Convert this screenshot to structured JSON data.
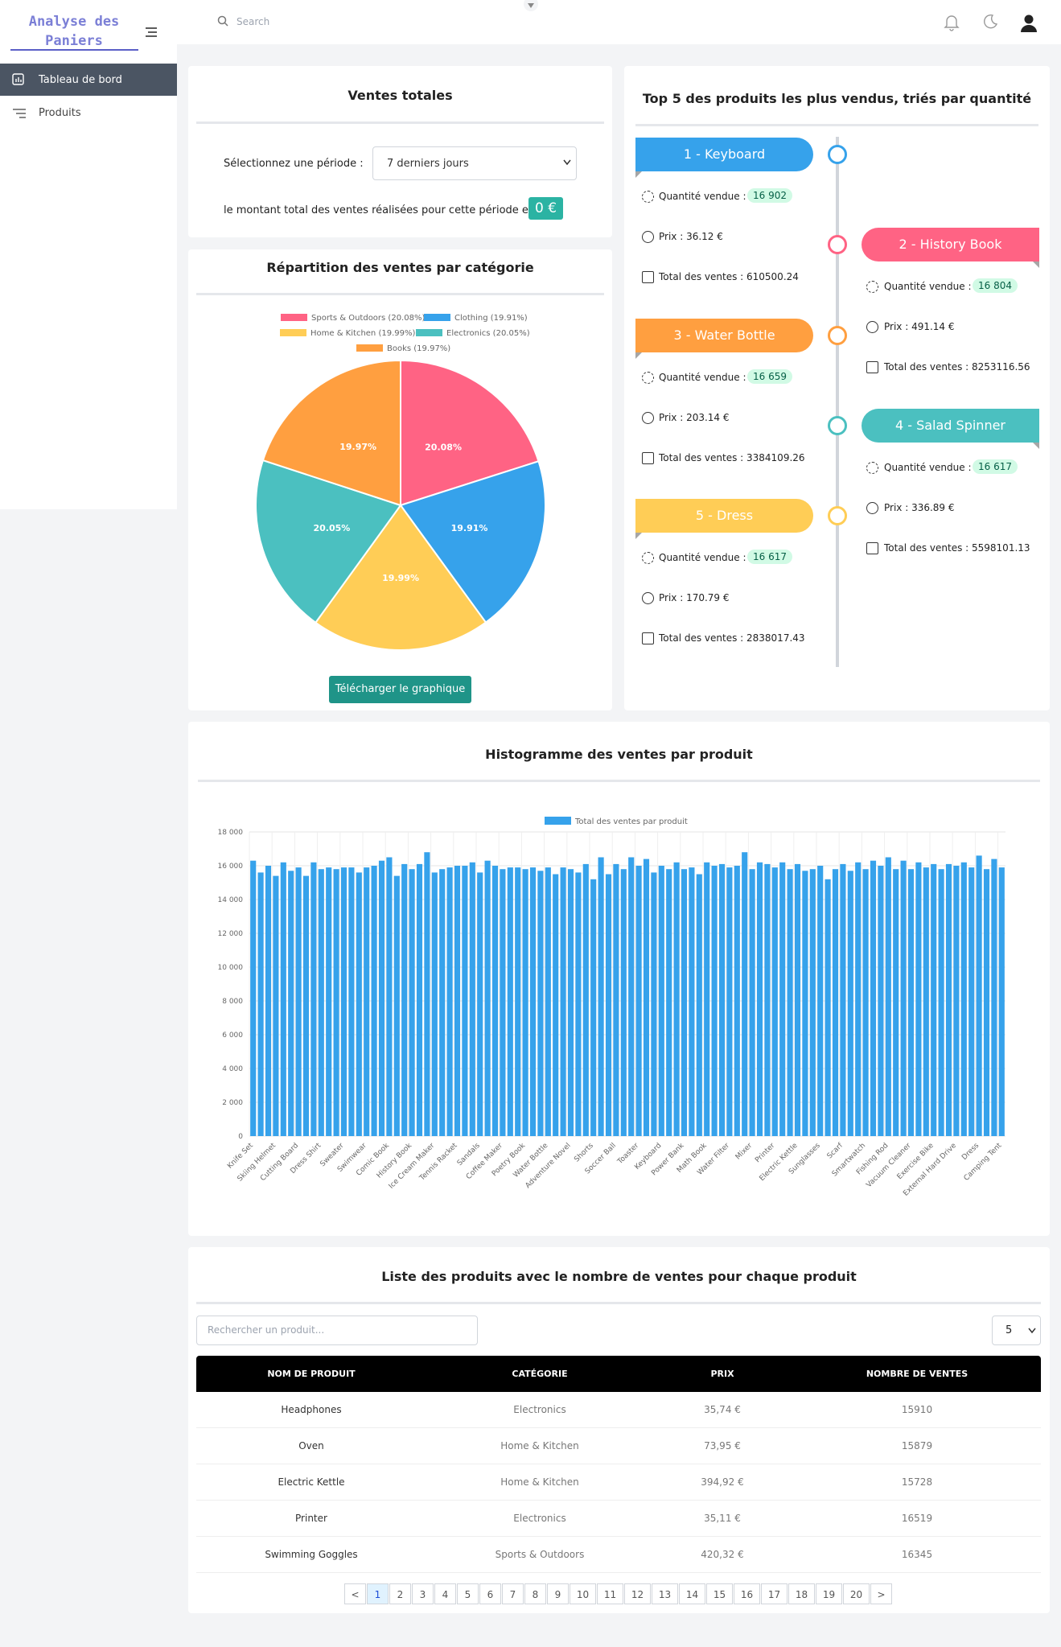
{
  "sidebar": {
    "logo_line1": "Analyse des",
    "logo_line2": "Paniers",
    "menu": [
      "Tableau de bord",
      "Produits"
    ]
  },
  "header": {
    "search_placeholder": "Search"
  },
  "sales_total": {
    "title": "Ventes totales",
    "period_label": "Sélectionnez une période :",
    "period_value": "7 derniers jours",
    "amount_text": "le montant total des ventes réalisées pour cette période est :",
    "amount": "0 €"
  },
  "pie_chart": {
    "type": "pie",
    "title": "Répartition des ventes par catégorie",
    "categories": [
      "Sports & Outdoors (20.08%)",
      "Clothing (19.91%)",
      "Home & Kitchen (19.99%)",
      "Electronics (20.05%)",
      "Books (19.97%)"
    ],
    "values": [
      20.08,
      19.91,
      19.99,
      20.05,
      19.97
    ],
    "value_labels": [
      "20.08%",
      "19.91%",
      "19.99%",
      "20.05%",
      "19.97%"
    ],
    "colors": [
      "#ff6384",
      "#36a2eb",
      "#ffcd56",
      "#4bc0c0",
      "#ff9f40"
    ],
    "legend": "top",
    "button": "Télécharger le graphique"
  },
  "top5": {
    "title": "Top 5 des produits les plus vendus, triés par quantité",
    "items": [
      {
        "rank_label": "1 - Keyboard",
        "quantity_label": "Quantité vendue :",
        "quantity": "16 902",
        "price": "Prix : 36.12 €",
        "total": "Total des ventes : 610500.24",
        "color": "#36a2eb",
        "side": "left"
      },
      {
        "rank_label": "2 - History Book",
        "quantity_label": "Quantité vendue :",
        "quantity": "16 804",
        "price": "Prix : 491.14 €",
        "total": "Total des ventes : 8253116.56",
        "color": "#ff6384",
        "side": "right"
      },
      {
        "rank_label": "3 - Water Bottle",
        "quantity_label": "Quantité vendue :",
        "quantity": "16 659",
        "price": "Prix : 203.14 €",
        "total": "Total des ventes : 3384109.26",
        "color": "#ff9f40",
        "side": "left"
      },
      {
        "rank_label": "4 - Salad Spinner",
        "quantity_label": "Quantité vendue :",
        "quantity": "16 617",
        "price": "Prix : 336.89 €",
        "total": "Total des ventes : 5598101.13",
        "color": "#4bc0c0",
        "side": "right"
      },
      {
        "rank_label": "5 - Dress",
        "quantity_label": "Quantité vendue :",
        "quantity": "16 617",
        "price": "Prix : 170.79 €",
        "total": "Total des ventes : 2838017.43",
        "color": "#ffcd56",
        "side": "left"
      }
    ]
  },
  "histogram": {
    "type": "bar",
    "title": "Histogramme des ventes par produit",
    "categories": [
      "Knife Set",
      null,
      null,
      "Skiing Helmet",
      null,
      null,
      "Cutting Board",
      null,
      null,
      "Dress Shirt",
      null,
      null,
      "Sweater",
      null,
      null,
      "Swimwear",
      null,
      null,
      "Comic Book",
      null,
      null,
      "History Book",
      null,
      null,
      "Ice Cream Maker",
      null,
      null,
      "Tennis Racket",
      null,
      null,
      "Sandals",
      null,
      null,
      "Coffee Maker",
      null,
      null,
      "Poetry Book",
      null,
      null,
      "Water Bottle",
      null,
      null,
      "Adventure Novel",
      null,
      null,
      "Shorts",
      null,
      null,
      "Soccer Ball",
      null,
      null,
      "Toaster",
      null,
      null,
      "Keyboard",
      null,
      null,
      "Power Bank",
      null,
      null,
      "Math Book",
      null,
      null,
      "Water Filter",
      null,
      null,
      "Mixer",
      null,
      null,
      "Printer",
      null,
      null,
      "Electric Kettle",
      null,
      null,
      "Sunglasses",
      null,
      null,
      "Scarf",
      null,
      null,
      "Smartwatch",
      null,
      null,
      "Fishing Rod",
      null,
      null,
      "Vacuum Cleaner",
      null,
      null,
      "Exercise Bike",
      null,
      null,
      "External Hard Drive",
      null,
      null,
      "Dress",
      null,
      null,
      "Camping Tent"
    ],
    "series": [
      {
        "name": "Total des ventes par produit",
        "color": "#36a2eb",
        "values": [
          16300,
          15600,
          16000,
          15400,
          16200,
          15700,
          15900,
          15400,
          16200,
          15800,
          15900,
          15800,
          15900,
          15900,
          15600,
          15900,
          16000,
          16300,
          16500,
          15400,
          16100,
          15800,
          16100,
          16800,
          15600,
          15800,
          15900,
          16000,
          16000,
          16200,
          15600,
          16300,
          16000,
          15800,
          15900,
          15900,
          15800,
          15900,
          15700,
          15900,
          15500,
          15900,
          15800,
          15600,
          16100,
          15200,
          16500,
          15500,
          16100,
          15800,
          16500,
          16000,
          16400,
          15600,
          16000,
          15800,
          16200,
          15800,
          15900,
          15500,
          16200,
          16000,
          16100,
          15900,
          16000,
          16800,
          15800,
          16200,
          16100,
          15900,
          16200,
          15800,
          16100,
          15700,
          15800,
          16000,
          15200,
          15800,
          16100,
          15700,
          16200,
          15800,
          16300,
          16000,
          16500,
          15800,
          16300,
          15800,
          16200,
          15900,
          16100,
          15800,
          16100,
          16000,
          16200,
          15900,
          16600,
          15800,
          16400,
          15900
        ]
      }
    ],
    "ylim": [
      0,
      18000
    ],
    "yticks": [
      0,
      {
        "value": 2000,
        "label": "2 000"
      },
      {
        "value": 4000,
        "label": "4 000"
      },
      {
        "value": 6000,
        "label": "6 000"
      },
      {
        "value": 8000,
        "label": "8 000"
      },
      {
        "value": 10000,
        "label": "10 000"
      },
      {
        "value": 12000,
        "label": "12 000"
      },
      {
        "value": 14000,
        "label": "14 000"
      },
      {
        "value": 16000,
        "label": "16 000"
      },
      {
        "value": 18000,
        "label": "18 000"
      }
    ],
    "grid": true,
    "legend": "top"
  },
  "product_table": {
    "title": "Liste des produits avec le nombre de ventes pour chaque produit",
    "search_placeholder": "Rechercher un produit...",
    "page_size": "5",
    "columns": [
      "NOM DE PRODUIT",
      "CATÉGORIE",
      "PRIX",
      "NOMBRE DE VENTES"
    ],
    "rows": [
      [
        "Headphones",
        "Electronics",
        "35,74 €",
        "15910"
      ],
      [
        "Oven",
        "Home & Kitchen",
        "73,95 €",
        "15879"
      ],
      [
        "Electric Kettle",
        "Home & Kitchen",
        "394,92 €",
        "15728"
      ],
      [
        "Printer",
        "Electronics",
        "35,11 €",
        "16519"
      ],
      [
        "Swimming Goggles",
        "Sports & Outdoors",
        "420,32 €",
        "16345"
      ]
    ],
    "pages": [
      "<",
      "1",
      "2",
      "3",
      "4",
      "5",
      "6",
      "7",
      "8",
      "9",
      "10",
      "11",
      "12",
      "13",
      "14",
      "15",
      "16",
      "17",
      "18",
      "19",
      "20",
      ">"
    ]
  }
}
